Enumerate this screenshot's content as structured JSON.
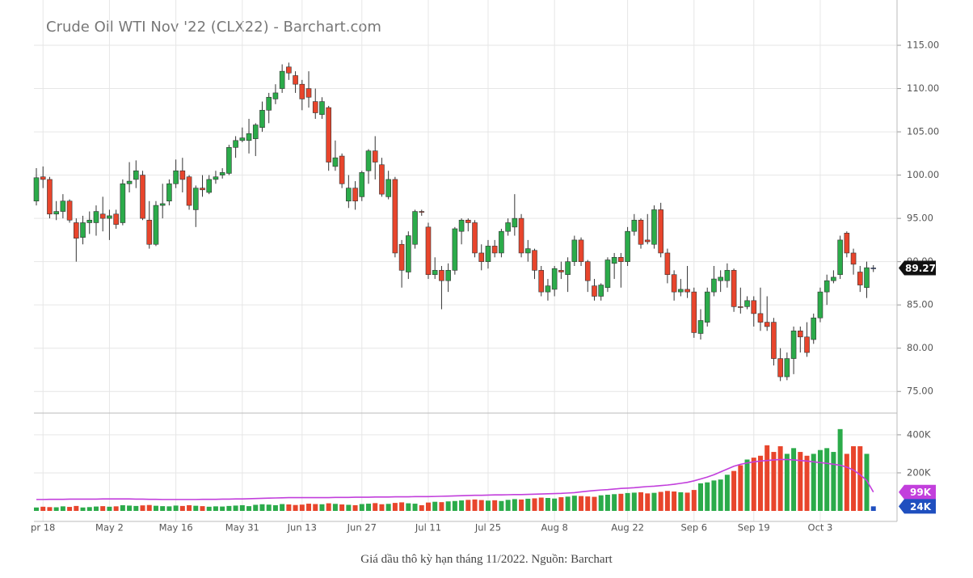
{
  "chart_data": {
    "type": "candlestick",
    "title": "Crude Oil WTI Nov '22 (CLX22) - Barchart.com",
    "caption": "Giá dầu thô kỳ hạn tháng 11/2022. Nguồn: Barchart",
    "up_color": "#2bab4a",
    "down_color": "#e8452c",
    "flat_color": "#1f4fbf",
    "grid": true,
    "categories": [
      null,
      "pr 18",
      null,
      null,
      null,
      null,
      null,
      null,
      null,
      null,
      null,
      "May 2",
      null,
      null,
      null,
      null,
      null,
      null,
      null,
      null,
      null,
      "May 16",
      null,
      null,
      null,
      null,
      null,
      null,
      null,
      null,
      null,
      "May 31",
      null,
      null,
      null,
      null,
      null,
      null,
      null,
      null,
      "Jun 13",
      null,
      null,
      null,
      null,
      null,
      null,
      null,
      null,
      "Jun 27",
      null,
      null,
      null,
      null,
      null,
      null,
      null,
      null,
      null,
      "Jul 11",
      null,
      null,
      null,
      null,
      null,
      null,
      null,
      null,
      "Jul 25",
      null,
      null,
      null,
      null,
      null,
      null,
      null,
      null,
      null,
      "Aug 8",
      null,
      null,
      null,
      null,
      null,
      null,
      null,
      null,
      null,
      null,
      "Aug 22",
      null,
      null,
      null,
      null,
      null,
      null,
      null,
      null,
      null,
      "Sep 6",
      null,
      null,
      null,
      null,
      null,
      null,
      null,
      null,
      "Sep 19",
      null,
      null,
      null,
      null,
      null,
      null,
      null,
      null,
      null,
      "Oct 3",
      null,
      null,
      null,
      null,
      null,
      null,
      null,
      null
    ],
    "open": [
      97,
      99.8,
      99.5,
      95.5,
      95.8,
      97,
      94.5,
      92.8,
      94.5,
      94.5,
      95.5,
      95,
      95.5,
      94.5,
      99,
      99.5,
      100,
      94.8,
      92,
      96.5,
      97,
      99,
      100.5,
      99.8,
      96,
      98.5,
      98,
      99.5,
      100,
      100.2,
      103.2,
      104,
      104,
      104.2,
      105.5,
      107.5,
      108.8,
      110,
      112.5,
      111.5,
      110.5,
      110,
      108.5,
      107,
      107.8,
      101,
      102.2,
      97,
      98.5,
      97.5,
      100.5,
      102.8,
      101.2,
      97.5,
      99.5,
      92,
      88.8,
      92,
      95.8,
      94,
      88.5,
      89,
      87.8,
      89,
      93.5,
      94.8,
      94.5,
      91,
      90,
      91.8,
      91,
      93.5,
      94,
      95,
      91,
      91.3,
      89,
      86.5,
      86.8,
      89,
      88.5,
      90,
      92.5,
      90,
      87.2,
      86,
      87,
      89.8,
      90.5,
      90,
      93.5,
      94.8,
      92.5,
      92,
      96,
      91,
      88.5,
      86.5,
      86.8,
      86.5,
      81.7,
      83,
      86.5,
      87.8,
      87.8,
      89,
      84.8,
      84.8,
      85.5,
      84,
      83,
      83,
      78.8,
      76.7,
      78.8,
      82,
      81.3,
      81,
      83.5,
      86.5,
      87.8,
      88.5,
      93.3,
      91,
      88.8,
      87,
      89.27
    ],
    "high": [
      100.8,
      101,
      99.8,
      97,
      97.8,
      97.2,
      95,
      95.3,
      95.8,
      96.5,
      97.5,
      96,
      96,
      99.5,
      101.5,
      101.7,
      100.5,
      97,
      97,
      99,
      99.5,
      101.8,
      102,
      100,
      98.8,
      100,
      100,
      100.5,
      100.8,
      103.5,
      104.5,
      105.5,
      106.5,
      106,
      108.5,
      109.5,
      110.5,
      112.8,
      113,
      112,
      111,
      112,
      110,
      109,
      108,
      104,
      102.5,
      100,
      99.3,
      100.5,
      103,
      104.5,
      102,
      100.5,
      99.8,
      92.5,
      93.5,
      96,
      96,
      94.5,
      90.5,
      89.5,
      89.8,
      94,
      95,
      95,
      94.8,
      92,
      92.5,
      92.5,
      93.8,
      95,
      97.8,
      95.5,
      92.5,
      91.5,
      89.5,
      88,
      89.5,
      90,
      90.5,
      93,
      92.8,
      90.2,
      88,
      87.5,
      90.5,
      91,
      91,
      94,
      95.5,
      95,
      95.5,
      96.5,
      96.8,
      91.5,
      89,
      88,
      89.5,
      87,
      84.5,
      87,
      89.5,
      89,
      89.8,
      89.2,
      87,
      86,
      86,
      87,
      86,
      83.5,
      80,
      79.5,
      82.5,
      82.5,
      83,
      84,
      87,
      88.5,
      89,
      93,
      93.5,
      91.5,
      89.5,
      90,
      89.6
    ],
    "low": [
      96.5,
      98.5,
      95,
      94.8,
      95,
      94.5,
      90,
      92,
      93.2,
      93,
      93.5,
      92.5,
      93.8,
      94.2,
      98,
      98.5,
      94.8,
      91.5,
      91.8,
      95,
      96.5,
      98.5,
      98,
      96,
      94,
      97.5,
      97.8,
      99,
      99.6,
      100,
      102,
      103.8,
      102.5,
      102.2,
      105,
      106,
      108.2,
      109.5,
      111,
      109.5,
      107.5,
      107.8,
      106.5,
      106.5,
      100.5,
      100.5,
      98.5,
      96.2,
      96,
      97,
      99,
      99.5,
      97.5,
      97.2,
      90.5,
      87,
      88,
      91.5,
      95.3,
      88,
      88,
      84.5,
      86.5,
      88.5,
      92,
      93.5,
      90.5,
      89,
      89.2,
      90.5,
      90.5,
      93,
      93,
      90.5,
      90,
      88,
      86,
      85.5,
      86,
      88,
      86.5,
      89.5,
      89.5,
      86.5,
      85.5,
      85.5,
      86.5,
      88,
      87,
      89.5,
      93,
      91.5,
      92,
      91.5,
      90.5,
      87.5,
      85.5,
      86,
      85.8,
      81.2,
      81,
      82.5,
      86,
      86.5,
      87,
      84.2,
      84,
      84.5,
      82.5,
      82,
      82,
      78,
      76.2,
      76.3,
      77,
      79.5,
      79,
      80.5,
      83,
      85,
      87.5,
      88,
      90.5,
      88.5,
      86.5,
      85.8,
      88.8
    ],
    "close": [
      99.7,
      99.5,
      95.5,
      95.8,
      97,
      94.8,
      92.7,
      94.5,
      94.8,
      95.8,
      95,
      95.3,
      94.3,
      99,
      99.3,
      100.5,
      95,
      92,
      96.5,
      96.7,
      99,
      100.5,
      99.5,
      96.5,
      98.5,
      98.3,
      99.5,
      99.8,
      100.3,
      103.2,
      104,
      104.3,
      104.8,
      105.8,
      107.5,
      109,
      109.5,
      112,
      111.8,
      110.5,
      108.8,
      109,
      107.2,
      108.5,
      101.5,
      102,
      99,
      98.5,
      97,
      100.3,
      102.8,
      101.5,
      97.8,
      99.5,
      91,
      89,
      93,
      95.8,
      95.7,
      88.5,
      89,
      87.8,
      89,
      93.8,
      94.8,
      94.5,
      91,
      90,
      91.8,
      91,
      93.5,
      94.5,
      95,
      91,
      91.5,
      89,
      86.5,
      87.2,
      89.2,
      88.8,
      90,
      92.5,
      90,
      87.8,
      86,
      87.3,
      90.2,
      90.5,
      90,
      93.5,
      94.8,
      92,
      92.3,
      96,
      91,
      88.5,
      86.5,
      86.8,
      86.5,
      81.8,
      83.2,
      86.5,
      88,
      88.2,
      89,
      84.8,
      84.7,
      85.5,
      84,
      83,
      82.5,
      78.8,
      76.7,
      78.8,
      82,
      81.3,
      79.5,
      83.5,
      86.5,
      87.8,
      88.2,
      92.5,
      91,
      89.7,
      87.3,
      89.3,
      89.27
    ],
    "ylim": [
      72.5,
      119.3
    ],
    "yticks": [
      {
        "value": 75,
        "label": "75.00"
      },
      {
        "value": 80,
        "label": "80.00"
      },
      {
        "value": 85,
        "label": "85.00"
      },
      {
        "value": 90,
        "label": "90.00"
      },
      {
        "value": 95,
        "label": "95.00"
      },
      {
        "value": 100,
        "label": "100.00"
      },
      {
        "value": 105,
        "label": "105.00"
      },
      {
        "value": 110,
        "label": "110.00"
      },
      {
        "value": 115,
        "label": "115.00"
      }
    ],
    "volume": {
      "ylim": [
        0,
        510
      ],
      "yticks": [
        {
          "value": 200,
          "label": "200K"
        },
        {
          "value": 400,
          "label": "400K"
        }
      ],
      "values": [
        18,
        22,
        20,
        19,
        24,
        21,
        26,
        18,
        20,
        23,
        25,
        22,
        24,
        30,
        28,
        26,
        29,
        31,
        27,
        25,
        24,
        28,
        26,
        30,
        27,
        25,
        22,
        24,
        23,
        26,
        28,
        30,
        25,
        32,
        35,
        33,
        30,
        36,
        34,
        31,
        33,
        38,
        36,
        35,
        40,
        37,
        34,
        32,
        30,
        36,
        38,
        41,
        35,
        37,
        42,
        45,
        40,
        38,
        30,
        44,
        48,
        46,
        50,
        52,
        55,
        58,
        60,
        57,
        54,
        56,
        52,
        58,
        62,
        60,
        64,
        66,
        70,
        68,
        65,
        72,
        75,
        80,
        78,
        76,
        74,
        82,
        85,
        88,
        90,
        94,
        96,
        98,
        92,
        95,
        100,
        105,
        102,
        98,
        96,
        110,
        145,
        150,
        160,
        165,
        190,
        210,
        240,
        270,
        280,
        290,
        345,
        310,
        340,
        300,
        330,
        310,
        290,
        300,
        320,
        330,
        310,
        430,
        300,
        340,
        340,
        300,
        24
      ],
      "value_labels": [
        null,
        null,
        null,
        null,
        null,
        null,
        null,
        null,
        null,
        null,
        null,
        null,
        null,
        null,
        null,
        null,
        null,
        null,
        null,
        null,
        null,
        null,
        null,
        null,
        null,
        null,
        null,
        null,
        null,
        null,
        null,
        null,
        null,
        null,
        null,
        null,
        null,
        null,
        null,
        null,
        null,
        null,
        null,
        null,
        null,
        null,
        null,
        null,
        null,
        null,
        null,
        null,
        null,
        null,
        null,
        null,
        null,
        null,
        null,
        null,
        null,
        null,
        null,
        null,
        null,
        null,
        null,
        null,
        null,
        null,
        null,
        null,
        null,
        null,
        null,
        null,
        null,
        null,
        null,
        null,
        null,
        null,
        null,
        null,
        null,
        null,
        null,
        null,
        null,
        null,
        null,
        null,
        null,
        null,
        null,
        null,
        null,
        null,
        null,
        null,
        null,
        null,
        null,
        null,
        null,
        null,
        null,
        null,
        null,
        null,
        null,
        null,
        null,
        null,
        null,
        null,
        null,
        null,
        null,
        null,
        null,
        null,
        null,
        null,
        null,
        null,
        "24K"
      ]
    },
    "volume_ma": {
      "color": "#c23fdc",
      "values": [
        60,
        60,
        61,
        61,
        61,
        62,
        62,
        62,
        62,
        62,
        63,
        63,
        63,
        63,
        63,
        62,
        62,
        61,
        61,
        60,
        60,
        60,
        60,
        60,
        60,
        61,
        61,
        61,
        62,
        62,
        63,
        63,
        64,
        65,
        66,
        67,
        68,
        69,
        70,
        70,
        70,
        70,
        70,
        70,
        70,
        71,
        71,
        71,
        72,
        72,
        72,
        73,
        73,
        73,
        74,
        74,
        74,
        75,
        75,
        75,
        76,
        77,
        78,
        79,
        80,
        81,
        82,
        82,
        83,
        84,
        84,
        85,
        86,
        86,
        87,
        88,
        89,
        90,
        91,
        92,
        94,
        96,
        100,
        104,
        107,
        110,
        112,
        115,
        118,
        120,
        122,
        125,
        128,
        130,
        133,
        136,
        140,
        145,
        150,
        158,
        168,
        178,
        190,
        205,
        220,
        235,
        245,
        252,
        258,
        262,
        265,
        268,
        270,
        270,
        268,
        265,
        262,
        258,
        254,
        250,
        245,
        240,
        230,
        215,
        190,
        160,
        99
      ],
      "value_labels": [
        null,
        null,
        null,
        null,
        null,
        null,
        null,
        null,
        null,
        null,
        null,
        null,
        null,
        null,
        null,
        null,
        null,
        null,
        null,
        null,
        null,
        null,
        null,
        null,
        null,
        null,
        null,
        null,
        null,
        null,
        null,
        null,
        null,
        null,
        null,
        null,
        null,
        null,
        null,
        null,
        null,
        null,
        null,
        null,
        null,
        null,
        null,
        null,
        null,
        null,
        null,
        null,
        null,
        null,
        null,
        null,
        null,
        null,
        null,
        null,
        null,
        null,
        null,
        null,
        null,
        null,
        null,
        null,
        null,
        null,
        null,
        null,
        null,
        null,
        null,
        null,
        null,
        null,
        null,
        null,
        null,
        null,
        null,
        null,
        null,
        null,
        null,
        null,
        null,
        null,
        null,
        null,
        null,
        null,
        null,
        null,
        null,
        null,
        null,
        null,
        null,
        null,
        null,
        null,
        null,
        null,
        null,
        null,
        null,
        null,
        null,
        null,
        null,
        null,
        null,
        null,
        null,
        null,
        null,
        null,
        null,
        null,
        null,
        null,
        null,
        null,
        "99K"
      ]
    }
  }
}
